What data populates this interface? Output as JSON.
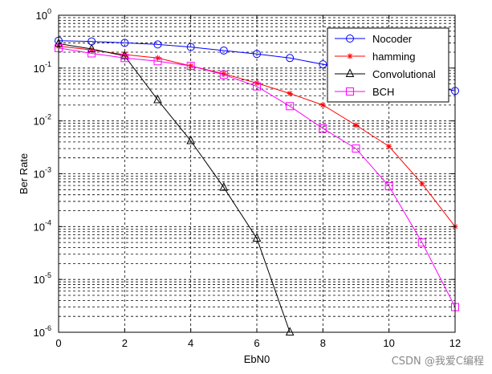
{
  "chart_data": {
    "type": "line",
    "title": "",
    "xlabel": "EbN0",
    "ylabel": "Ber Rate",
    "xlim": [
      0,
      12
    ],
    "ylim": [
      1e-06,
      1
    ],
    "yscale": "log",
    "grid": true,
    "legend_position": "top-right",
    "x_ticks": [
      0,
      2,
      4,
      6,
      8,
      10,
      12
    ],
    "x_tick_labels": [
      "0",
      "2",
      "4",
      "6",
      "8",
      "10",
      "12"
    ],
    "y_ticks": [
      1,
      0.1,
      0.01,
      0.001,
      0.0001,
      1e-05,
      1e-06
    ],
    "y_tick_labels": [
      {
        "base": "10",
        "exp": "0"
      },
      {
        "base": "10",
        "exp": "-1"
      },
      {
        "base": "10",
        "exp": "-2"
      },
      {
        "base": "10",
        "exp": "-3"
      },
      {
        "base": "10",
        "exp": "-4"
      },
      {
        "base": "10",
        "exp": "-5"
      },
      {
        "base": "10",
        "exp": "-6"
      }
    ],
    "series": [
      {
        "name": "Nocoder",
        "color": "#0000ff",
        "marker": "circle",
        "x": [
          0,
          1,
          2,
          3,
          4,
          5,
          6,
          7,
          8,
          9,
          10,
          11,
          12
        ],
        "y": [
          0.33,
          0.32,
          0.3,
          0.28,
          0.25,
          0.215,
          0.185,
          0.155,
          0.118,
          0.09,
          0.065,
          0.05,
          0.037
        ]
      },
      {
        "name": "hamming",
        "color": "#ff0000",
        "marker": "star",
        "x": [
          0,
          1,
          2,
          3,
          4,
          5,
          6,
          7,
          8,
          9,
          10,
          11,
          12
        ],
        "y": [
          0.26,
          0.22,
          0.18,
          0.155,
          0.11,
          0.078,
          0.052,
          0.033,
          0.02,
          0.0083,
          0.0033,
          0.00065,
          0.0001
        ]
      },
      {
        "name": "Convolutional",
        "color": "#000000",
        "marker": "triangle",
        "x": [
          0,
          1,
          2,
          3,
          4,
          5,
          6,
          7
        ],
        "y": [
          0.29,
          0.23,
          0.17,
          0.025,
          0.0042,
          0.00055,
          6e-05,
          1e-06
        ]
      },
      {
        "name": "BCH",
        "color": "#ff00ff",
        "marker": "square",
        "x": [
          0,
          1,
          2,
          3,
          4,
          5,
          6,
          7,
          8,
          9,
          10,
          11,
          12
        ],
        "y": [
          0.24,
          0.19,
          0.155,
          0.135,
          0.11,
          0.075,
          0.045,
          0.019,
          0.0072,
          0.003,
          0.00058,
          5e-05,
          3e-06
        ]
      }
    ]
  },
  "watermark": "CSDN @我爱C编程"
}
